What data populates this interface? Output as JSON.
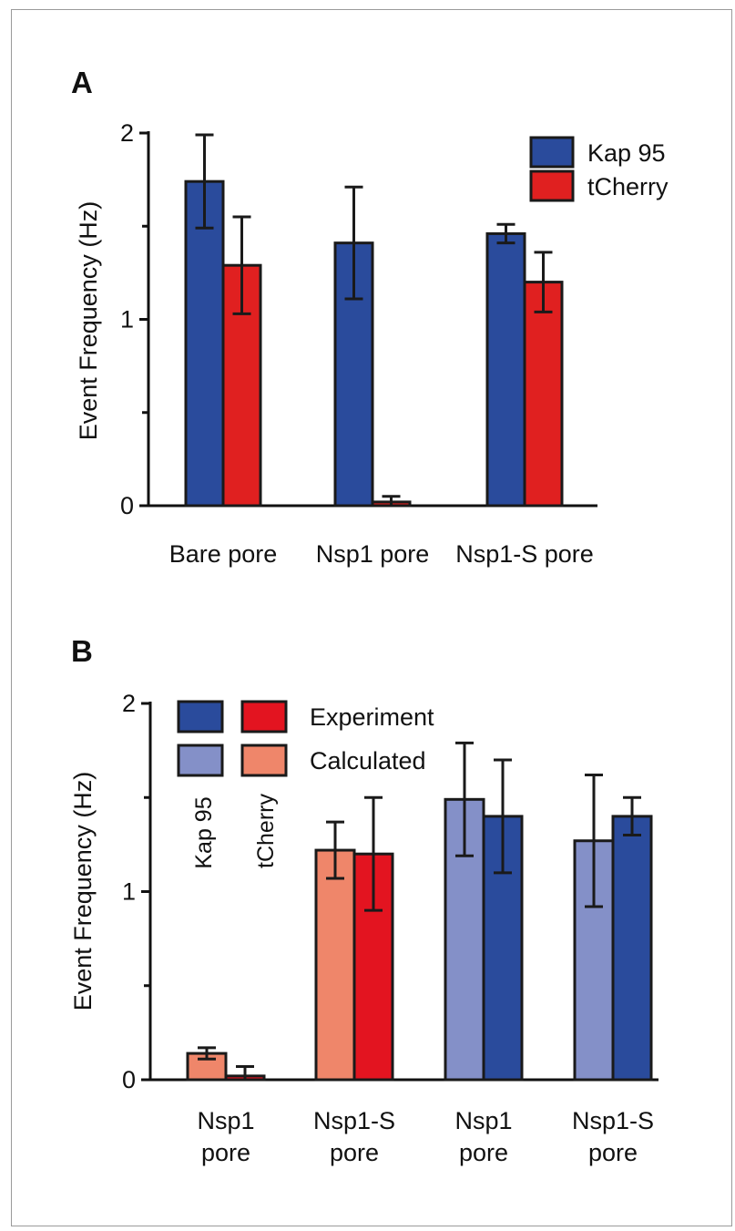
{
  "chart_data": [
    {
      "panel": "A",
      "type": "bar",
      "ylabel": "Event Frequency (Hz)",
      "ylim": [
        0,
        2
      ],
      "yticks": [
        0,
        1,
        2
      ],
      "minor_yticks": [
        0.5,
        1.5
      ],
      "categories": [
        "Bare pore",
        "Nsp1 pore",
        "Nsp1-S pore"
      ],
      "series": [
        {
          "name": "Kap 95",
          "color": "#2a4b9c",
          "values": [
            1.74,
            1.41,
            1.46
          ],
          "errors": [
            0.25,
            0.3,
            0.05
          ]
        },
        {
          "name": "tCherry",
          "color": "#e02020",
          "values": [
            1.29,
            0.02,
            1.2
          ],
          "errors": [
            0.26,
            0.03,
            0.16
          ]
        }
      ],
      "legend": {
        "placement": "top-right",
        "entries": [
          "Kap 95",
          "tCherry"
        ]
      }
    },
    {
      "panel": "B",
      "type": "bar",
      "ylabel": "Event Frequency (Hz)",
      "ylim": [
        0,
        2
      ],
      "yticks": [
        0,
        1,
        2
      ],
      "minor_yticks": [
        0.5,
        1.5
      ],
      "categories": [
        "Nsp1\npore",
        "Nsp1-S\npore",
        "Nsp1\npore",
        "Nsp1-S\npore"
      ],
      "bars": [
        {
          "group": 0,
          "slot": 0,
          "value": 0.14,
          "error": 0.03,
          "color": "#ef866a"
        },
        {
          "group": 0,
          "slot": 1,
          "value": 0.02,
          "error": 0.05,
          "color": "#e31420"
        },
        {
          "group": 1,
          "slot": 0,
          "value": 1.22,
          "error": 0.15,
          "color": "#ef866a"
        },
        {
          "group": 1,
          "slot": 1,
          "value": 1.2,
          "error": 0.3,
          "color": "#e31420"
        },
        {
          "group": 2,
          "slot": 0,
          "value": 1.49,
          "error": 0.3,
          "color": "#8490c8"
        },
        {
          "group": 2,
          "slot": 1,
          "value": 1.4,
          "error": 0.3,
          "color": "#2a4b9c"
        },
        {
          "group": 3,
          "slot": 0,
          "value": 1.27,
          "error": 0.35,
          "color": "#8490c8"
        },
        {
          "group": 3,
          "slot": 1,
          "value": 1.4,
          "error": 0.1,
          "color": "#2a4b9c"
        }
      ],
      "legend": {
        "placement": "top-left",
        "rows": [
          {
            "label": "Experiment",
            "colors": [
              "#2a4b9c",
              "#e31420"
            ]
          },
          {
            "label": "Calculated",
            "colors": [
              "#8490c8",
              "#ef866a"
            ]
          }
        ],
        "column_labels": [
          "Kap 95",
          "tCherry"
        ]
      }
    }
  ],
  "panels": {
    "a_label": "A",
    "b_label": "B"
  }
}
